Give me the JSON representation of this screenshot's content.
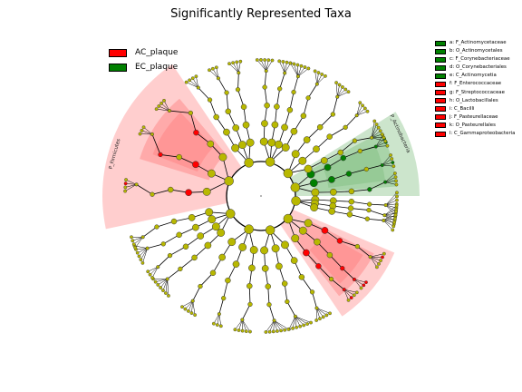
{
  "title": "Significantly Represented Taxa",
  "colors": {
    "ac_plaque": "#ff0000",
    "ec_plaque": "#008000",
    "neutral_node": "#b8b800",
    "ac_sector": "#ff7f7f",
    "ec_sector": "#7fbf7f"
  },
  "groups": [
    {
      "label": "AC_plaque",
      "color": "#ff0000"
    },
    {
      "label": "EC_plaque",
      "color": "#008000"
    }
  ],
  "taxa_legend": [
    {
      "label": "a: F_Actinomycetaceae",
      "group": "EC_plaque",
      "color": "#008000"
    },
    {
      "label": "b: O_Actinomycetales",
      "group": "EC_plaque",
      "color": "#008000"
    },
    {
      "label": "c: F_Corynebacteriaceae",
      "group": "EC_plaque",
      "color": "#008000"
    },
    {
      "label": "d: O_Corynebacteriales",
      "group": "EC_plaque",
      "color": "#008000"
    },
    {
      "label": "e: C_Actinomycetia",
      "group": "EC_plaque",
      "color": "#008000"
    },
    {
      "label": "f: F_Enterococcaceae",
      "group": "AC_plaque",
      "color": "#ff0000"
    },
    {
      "label": "g: F_Streptococcaceae",
      "group": "AC_plaque",
      "color": "#ff0000"
    },
    {
      "label": "h: O_Lactobacillales",
      "group": "AC_plaque",
      "color": "#ff0000"
    },
    {
      "label": "i: C_Bacilli",
      "group": "AC_plaque",
      "color": "#ff0000"
    },
    {
      "label": "j: F_Pasteurellaceae",
      "group": "AC_plaque",
      "color": "#ff0000"
    },
    {
      "label": "k: O_Pasteurellales",
      "group": "AC_plaque",
      "color": "#ff0000"
    },
    {
      "label": "l: C_Gammaproteobacteria",
      "group": "AC_plaque",
      "color": "#ff0000"
    }
  ],
  "clade_labels": [
    {
      "text": "P_Firmicutes",
      "group": "AC_plaque"
    },
    {
      "text": "P_Actinobacteria",
      "group": "EC_plaque"
    }
  ]
}
